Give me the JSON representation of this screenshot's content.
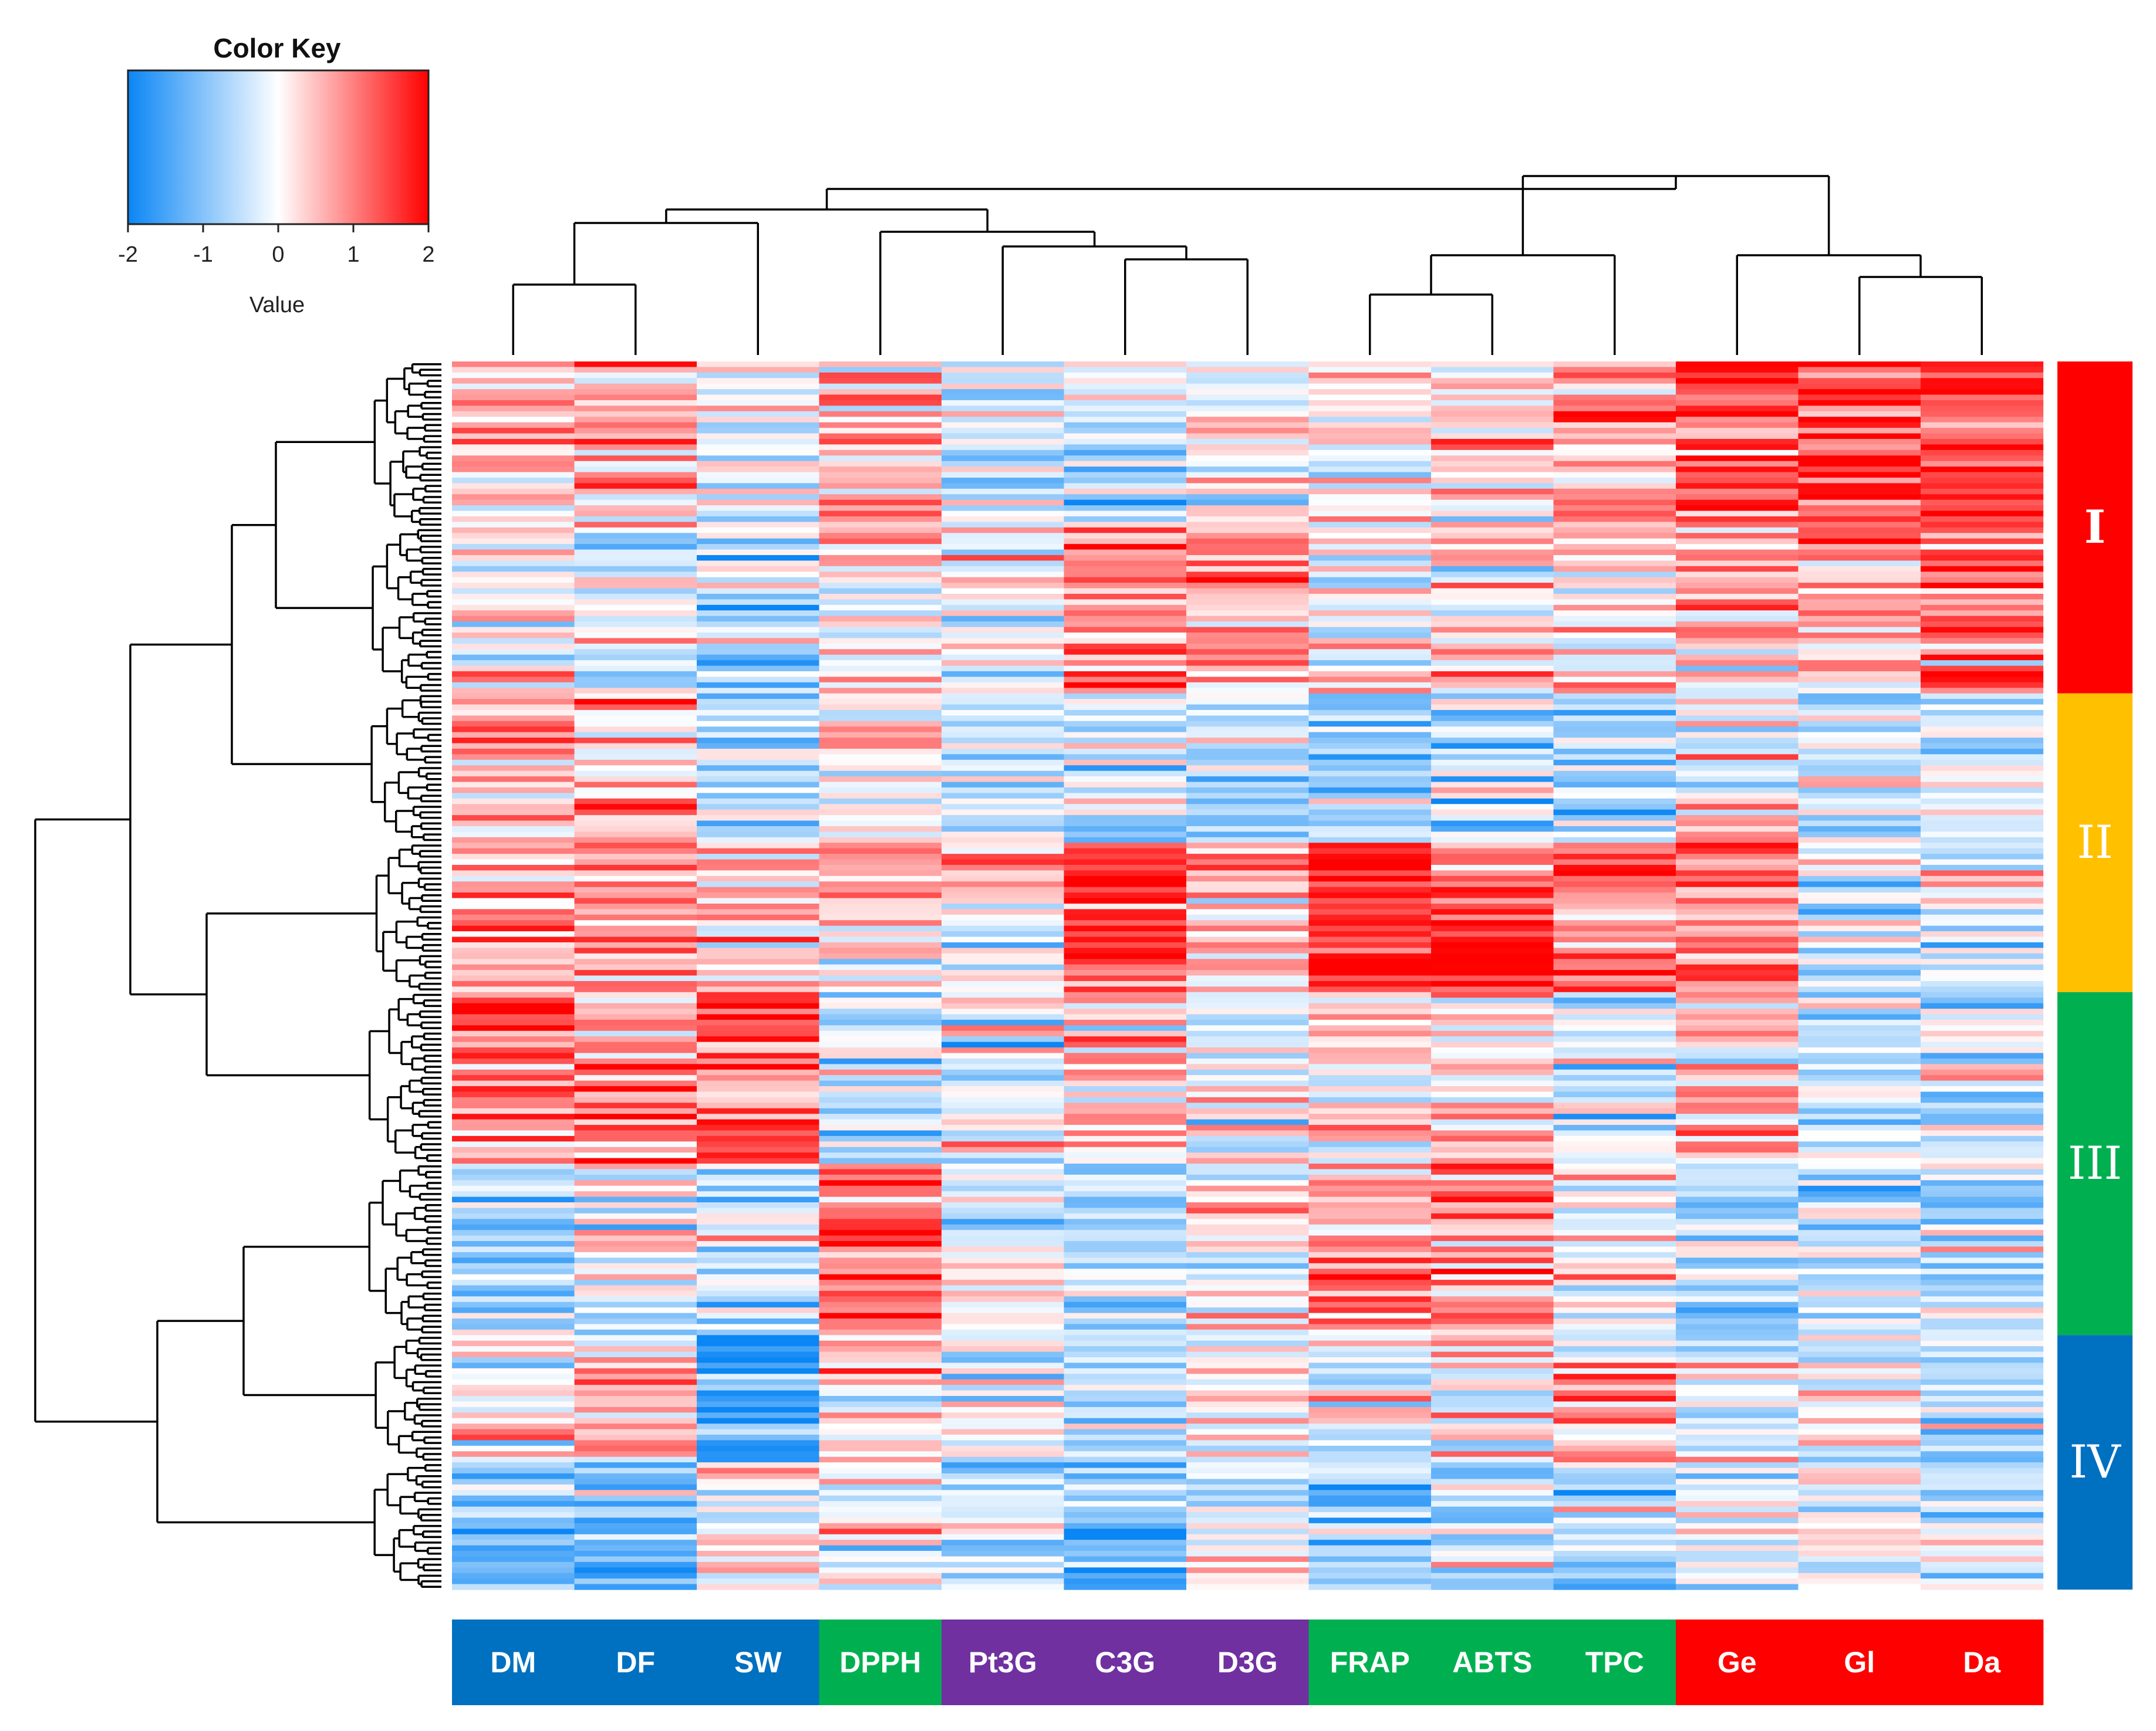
{
  "colors": {
    "low": "#0a86f5",
    "mid": "#ffffff",
    "high": "#ff0000",
    "group_blue": "#0070c0",
    "group_green": "#00b050",
    "group_purple": "#7030a0",
    "group_red": "#ff0000",
    "cluster_I": "#ff0000",
    "cluster_II": "#ffc000",
    "cluster_III": "#00b050",
    "cluster_IV": "#0070c0"
  },
  "color_key": {
    "title": "Color Key",
    "label": "Value",
    "ticks": [
      "-2",
      "-1",
      "0",
      "1",
      "2"
    ],
    "range": [
      -2,
      2
    ]
  },
  "chart_data": {
    "type": "heatmap",
    "value_range": [
      -2,
      2
    ],
    "columns": [
      "DM",
      "DF",
      "SW",
      "DPPH",
      "Pt3G",
      "C3G",
      "D3G",
      "FRAP",
      "ABTS",
      "TPC",
      "Ge",
      "Gl",
      "Da"
    ],
    "column_groups": [
      "blue",
      "blue",
      "blue",
      "green",
      "purple",
      "purple",
      "purple",
      "green",
      "green",
      "green",
      "red",
      "red",
      "red"
    ],
    "clusters": [
      {
        "label": "I",
        "rows": 60,
        "color": "red"
      },
      {
        "label": "II",
        "rows": 54,
        "color": "yellow"
      },
      {
        "label": "III",
        "rows": 62,
        "color": "green"
      },
      {
        "label": "IV",
        "rows": 46,
        "color": "blue"
      }
    ],
    "row_count": 222,
    "block_means": [
      [
        0.5,
        0.8,
        -0.2,
        0.6,
        -0.3,
        -0.4,
        0.3,
        0.2,
        0.4,
        0.6,
        1.4,
        1.8,
        1.6
      ],
      [
        0.2,
        -0.3,
        -0.6,
        0.3,
        -0.1,
        0.8,
        0.7,
        0.0,
        0.1,
        0.2,
        0.6,
        0.7,
        0.9
      ],
      [
        0.6,
        0.5,
        -0.4,
        0.0,
        -0.3,
        -0.6,
        -0.8,
        -0.8,
        -0.6,
        -0.7,
        0.3,
        -0.3,
        -0.2
      ],
      [
        0.8,
        1.1,
        0.4,
        0.5,
        0.0,
        1.4,
        0.6,
        1.7,
        1.5,
        1.2,
        1.1,
        -0.2,
        -0.3
      ],
      [
        1.1,
        0.9,
        1.4,
        -0.6,
        -0.2,
        0.4,
        -0.1,
        0.3,
        0.3,
        -0.3,
        0.4,
        -0.4,
        -0.3
      ],
      [
        -0.6,
        -0.2,
        -0.4,
        1.2,
        -0.3,
        -0.5,
        0.2,
        0.8,
        0.9,
        0.1,
        -0.6,
        -0.5,
        -0.6
      ],
      [
        0.0,
        0.5,
        -1.6,
        0.3,
        0.0,
        -0.4,
        0.1,
        -0.2,
        0.0,
        0.5,
        -0.2,
        -0.3,
        -0.6
      ],
      [
        -1.1,
        -1.2,
        0.1,
        0.0,
        -0.6,
        -0.9,
        -0.3,
        -0.8,
        -0.5,
        -0.8,
        -0.4,
        -0.3,
        0.0
      ]
    ],
    "row_blocks": [
      30,
      30,
      27,
      27,
      31,
      31,
      23,
      23
    ],
    "dendrogram": [
      [
        "DM",
        "DF"
      ],
      "SW",
      [
        "DPPH",
        [
          "Pt3G",
          [
            "C3G",
            "D3G"
          ]
        ]
      ],
      [
        [
          "FRAP",
          "ABTS"
        ],
        "TPC"
      ],
      [
        "Ge",
        [
          "Gl",
          "Da"
        ]
      ]
    ]
  }
}
